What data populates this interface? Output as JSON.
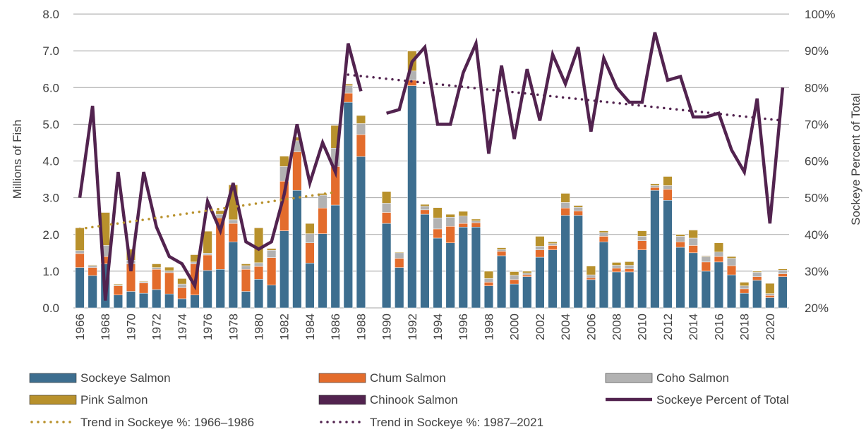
{
  "chart_data": {
    "type": "bar",
    "stacked": true,
    "xlabel": "",
    "ylabel": "Millions of Fish",
    "y2label": "Sockeye Percent of Total",
    "ylim": [
      0,
      8
    ],
    "y2lim": [
      20,
      100
    ],
    "y_ticks": [
      "0.0",
      "1.0",
      "2.0",
      "3.0",
      "4.0",
      "5.0",
      "6.0",
      "7.0",
      "8.0"
    ],
    "y2_ticks": [
      "20%",
      "30%",
      "40%",
      "50%",
      "60%",
      "70%",
      "80%",
      "90%",
      "100%"
    ],
    "x_tick_labels": [
      "1966",
      "1968",
      "1970",
      "1972",
      "1974",
      "1976",
      "1978",
      "1980",
      "1982",
      "1984",
      "1986",
      "1988",
      "1990",
      "1992",
      "1994",
      "1996",
      "1998",
      "2000",
      "2002",
      "2004",
      "2006",
      "2008",
      "2010",
      "2012",
      "2014",
      "2016",
      "2018",
      "2020"
    ],
    "grid": true,
    "legend_position": "bottom",
    "categories": [
      "1966",
      "1967",
      "1968",
      "1969",
      "1970",
      "1971",
      "1972",
      "1973",
      "1974",
      "1975",
      "1976",
      "1977",
      "1978",
      "1979",
      "1980",
      "1981",
      "1982",
      "1983",
      "1984",
      "1985",
      "1986",
      "1987",
      "1988",
      "1989",
      "1990",
      "1991",
      "1992",
      "1993",
      "1994",
      "1995",
      "1996",
      "1997",
      "1998",
      "1999",
      "2000",
      "2001",
      "2002",
      "2003",
      "2004",
      "2005",
      "2006",
      "2007",
      "2008",
      "2009",
      "2010",
      "2011",
      "2012",
      "2013",
      "2014",
      "2015",
      "2016",
      "2017",
      "2018",
      "2019",
      "2020",
      "2021"
    ],
    "series": [
      {
        "name": "Sockeye Salmon",
        "kind": "bar",
        "color": "#3d6e8f",
        "values": [
          1.1,
          0.88,
          1.2,
          0.35,
          0.45,
          0.4,
          0.5,
          0.38,
          0.25,
          0.35,
          1.02,
          1.05,
          1.8,
          0.45,
          0.78,
          0.62,
          2.1,
          3.2,
          1.22,
          2.02,
          2.8,
          5.6,
          4.12,
          null,
          2.3,
          1.1,
          6.05,
          2.55,
          1.9,
          1.77,
          2.2,
          2.2,
          0.6,
          1.42,
          0.65,
          0.85,
          1.38,
          1.58,
          2.52,
          2.52,
          0.77,
          1.8,
          0.98,
          0.98,
          1.58,
          3.2,
          2.93,
          1.65,
          1.5,
          1.0,
          1.25,
          0.9,
          0.4,
          0.75,
          0.28,
          0.85
        ]
      },
      {
        "name": "Chum Salmon",
        "kind": "bar",
        "color": "#e36c2c",
        "values": [
          0.38,
          0.22,
          0.2,
          0.25,
          0.75,
          0.28,
          0.55,
          0.58,
          0.3,
          0.85,
          0.42,
          1.4,
          0.5,
          0.6,
          0.35,
          0.75,
          1.35,
          1.05,
          0.55,
          0.7,
          1.05,
          0.25,
          0.6,
          null,
          0.3,
          0.25,
          0.15,
          0.12,
          0.25,
          0.45,
          0.1,
          0.12,
          0.1,
          0.12,
          0.12,
          0.05,
          0.2,
          0.12,
          0.2,
          0.12,
          0.05,
          0.15,
          0.1,
          0.08,
          0.25,
          0.08,
          0.3,
          0.15,
          0.2,
          0.25,
          0.15,
          0.25,
          0.12,
          0.1,
          0.06,
          0.08
        ]
      },
      {
        "name": "Coho Salmon",
        "kind": "bar",
        "color": "#b2b2b2",
        "values": [
          0.08,
          0.05,
          0.3,
          0.02,
          0.1,
          0.03,
          0.05,
          0.05,
          0.1,
          0.05,
          0.05,
          0.1,
          0.1,
          0.1,
          0.1,
          0.2,
          0.4,
          0.3,
          0.25,
          0.35,
          0.5,
          0.2,
          0.3,
          null,
          0.25,
          0.15,
          0.25,
          0.1,
          0.3,
          0.25,
          0.2,
          0.05,
          0.1,
          0.05,
          0.12,
          0.05,
          0.1,
          0.05,
          0.15,
          0.1,
          0.08,
          0.1,
          0.08,
          0.1,
          0.12,
          0.05,
          0.1,
          0.15,
          0.2,
          0.15,
          0.12,
          0.2,
          0.08,
          0.12,
          0.05,
          0.1
        ]
      },
      {
        "name": "Pink Salmon",
        "kind": "bar",
        "color": "#b8912c",
        "values": [
          0.62,
          0.02,
          0.9,
          0.03,
          0.3,
          0.02,
          0.1,
          0.1,
          0.15,
          0.2,
          0.6,
          0.1,
          0.95,
          0.05,
          0.95,
          0.05,
          0.28,
          0.1,
          0.28,
          0.05,
          0.62,
          0.05,
          0.22,
          null,
          0.32,
          0.02,
          0.55,
          0.05,
          0.28,
          0.08,
          0.13,
          0.05,
          0.2,
          0.05,
          0.1,
          0.05,
          0.27,
          0.05,
          0.25,
          0.05,
          0.24,
          0.05,
          0.08,
          0.1,
          0.15,
          0.05,
          0.25,
          0.05,
          0.22,
          0.02,
          0.25,
          0.05,
          0.1,
          0.03,
          0.28,
          0.03
        ]
      },
      {
        "name": "Chinook Salmon",
        "kind": "bar",
        "color": "#52234f",
        "values": [
          0.01,
          0.01,
          0.01,
          0.01,
          0.01,
          0.01,
          0.01,
          0.01,
          0.01,
          0.01,
          0.01,
          0.01,
          0.01,
          0.01,
          0.01,
          0.01,
          0.01,
          0.01,
          0.01,
          0.01,
          0.01,
          0.01,
          0.01,
          null,
          0.01,
          0.01,
          0.01,
          0.01,
          0.01,
          0.01,
          0.01,
          0.01,
          0.01,
          0.01,
          0.01,
          0.01,
          0.01,
          0.01,
          0.01,
          0.01,
          0.01,
          0.01,
          0.01,
          0.01,
          0.01,
          0.01,
          0.01,
          0.01,
          0.01,
          0.01,
          0.01,
          0.01,
          0.01,
          0.01,
          0.01,
          0.01
        ]
      },
      {
        "name": "Sockeye Percent of Total",
        "kind": "line",
        "axis": "y2",
        "color": "#52234f",
        "values": [
          50,
          75,
          22,
          57,
          30,
          57,
          42,
          34,
          32,
          26,
          49,
          41,
          54,
          38,
          36,
          38,
          51,
          70,
          54,
          65,
          57,
          92,
          79,
          null,
          73,
          74,
          87,
          91,
          70,
          70,
          84,
          92,
          62,
          86,
          66,
          85,
          71,
          89,
          81,
          91,
          68,
          88,
          80,
          76,
          76,
          95,
          82,
          83,
          72,
          72,
          73,
          63,
          57,
          77,
          43,
          80
        ]
      },
      {
        "name": "Trend in Sockeye %: 1966–1986",
        "kind": "trend",
        "axis": "y2",
        "color": "#b8912c",
        "x": [
          "1966",
          "1986"
        ],
        "values": [
          41.5,
          51.5
        ]
      },
      {
        "name": "Trend in Sockeye %: 1987–2021",
        "kind": "trend",
        "axis": "y2",
        "color": "#52234f",
        "x": [
          "1987",
          "2021"
        ],
        "values": [
          83.5,
          71
        ]
      }
    ]
  }
}
